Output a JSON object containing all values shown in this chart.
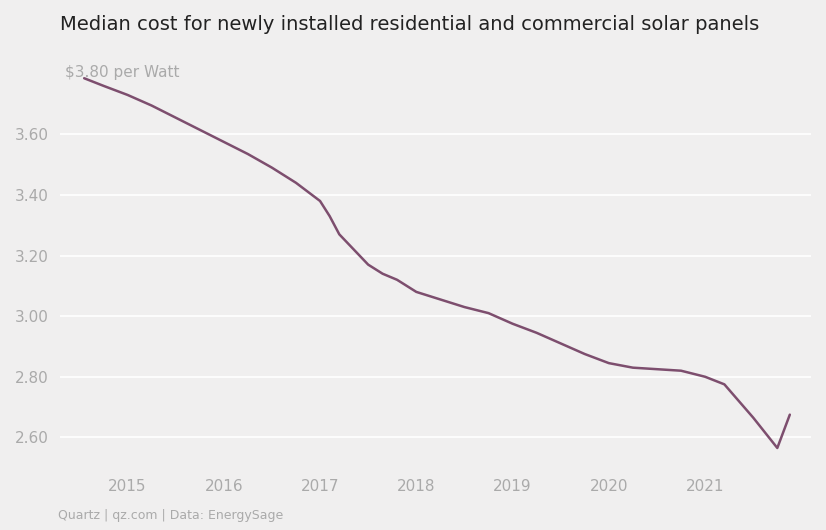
{
  "title": "Median cost for newly installed residential and commercial solar panels",
  "ylabel_annotation": "$3.80 per Watt",
  "source": "Quartz | qz.com | Data: EnergySage",
  "line_color": "#7d4e6e",
  "background_color": "#f0efef",
  "grid_color": "#ffffff",
  "x": [
    2014.55,
    2014.75,
    2015.0,
    2015.25,
    2015.5,
    2015.75,
    2016.0,
    2016.25,
    2016.5,
    2016.75,
    2017.0,
    2017.1,
    2017.2,
    2017.35,
    2017.5,
    2017.65,
    2017.8,
    2018.0,
    2018.25,
    2018.5,
    2018.75,
    2019.0,
    2019.25,
    2019.5,
    2019.75,
    2020.0,
    2020.25,
    2020.5,
    2020.75,
    2021.0,
    2021.2,
    2021.35,
    2021.5,
    2021.6,
    2021.75,
    2021.88
  ],
  "y": [
    3.785,
    3.76,
    3.73,
    3.695,
    3.655,
    3.615,
    3.575,
    3.535,
    3.49,
    3.44,
    3.38,
    3.33,
    3.27,
    3.22,
    3.17,
    3.14,
    3.12,
    3.08,
    3.055,
    3.03,
    3.01,
    2.975,
    2.945,
    2.91,
    2.875,
    2.845,
    2.83,
    2.825,
    2.82,
    2.8,
    2.775,
    2.72,
    2.665,
    2.625,
    2.565,
    2.675
  ],
  "xlim": [
    2014.3,
    2022.1
  ],
  "ylim": [
    2.5,
    3.88
  ],
  "yticks": [
    2.6,
    2.8,
    3.0,
    3.2,
    3.4,
    3.6
  ],
  "xticks": [
    2015,
    2016,
    2017,
    2018,
    2019,
    2020,
    2021
  ],
  "title_fontsize": 14,
  "annotation_fontsize": 11,
  "tick_fontsize": 11,
  "source_fontsize": 9
}
